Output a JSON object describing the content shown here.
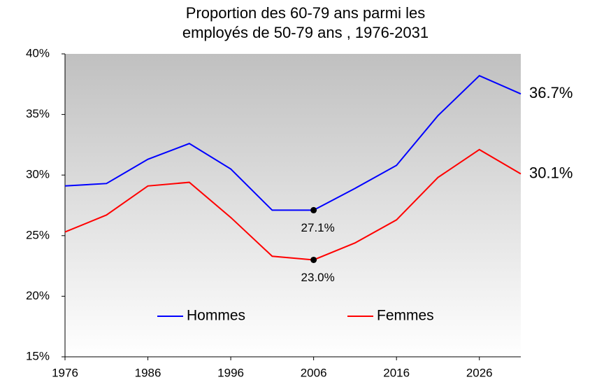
{
  "chart_data": {
    "type": "line",
    "title": [
      "Proportion des 60-79 ans parmi les",
      "employés de 50-79 ans , 1976-2031"
    ],
    "x": [
      1976,
      1981,
      1986,
      1991,
      1996,
      2001,
      2006,
      2011,
      2016,
      2021,
      2026,
      2031
    ],
    "series": [
      {
        "name": "Hommes",
        "color": "#0000ff",
        "values": [
          29.1,
          29.3,
          31.3,
          32.6,
          30.5,
          27.1,
          27.1,
          28.9,
          30.8,
          34.9,
          38.2,
          36.7
        ],
        "value_labels": [
          null,
          null,
          null,
          null,
          null,
          null,
          "27.1%",
          null,
          null,
          null,
          null,
          "36.7%"
        ]
      },
      {
        "name": "Femmes",
        "color": "#ff0000",
        "values": [
          25.3,
          26.7,
          29.1,
          29.4,
          26.5,
          23.3,
          23.0,
          24.4,
          26.3,
          29.8,
          32.1,
          30.1
        ],
        "value_labels": [
          null,
          null,
          null,
          null,
          null,
          null,
          "23.0%",
          null,
          null,
          null,
          null,
          "30.1%"
        ]
      }
    ],
    "xlim": [
      1976,
      2031
    ],
    "xticks": [
      1976,
      1986,
      1996,
      2006,
      2016,
      2026
    ],
    "ylim": [
      15,
      40
    ],
    "yticks": [
      {
        "value": 15,
        "label": "15%"
      },
      {
        "value": 20,
        "label": "20%"
      },
      {
        "value": 25,
        "label": "25%"
      },
      {
        "value": 30,
        "label": "30%"
      },
      {
        "value": 35,
        "label": "35%"
      },
      {
        "value": 40,
        "label": "40%"
      }
    ],
    "legend": "bottom",
    "grid": false
  }
}
